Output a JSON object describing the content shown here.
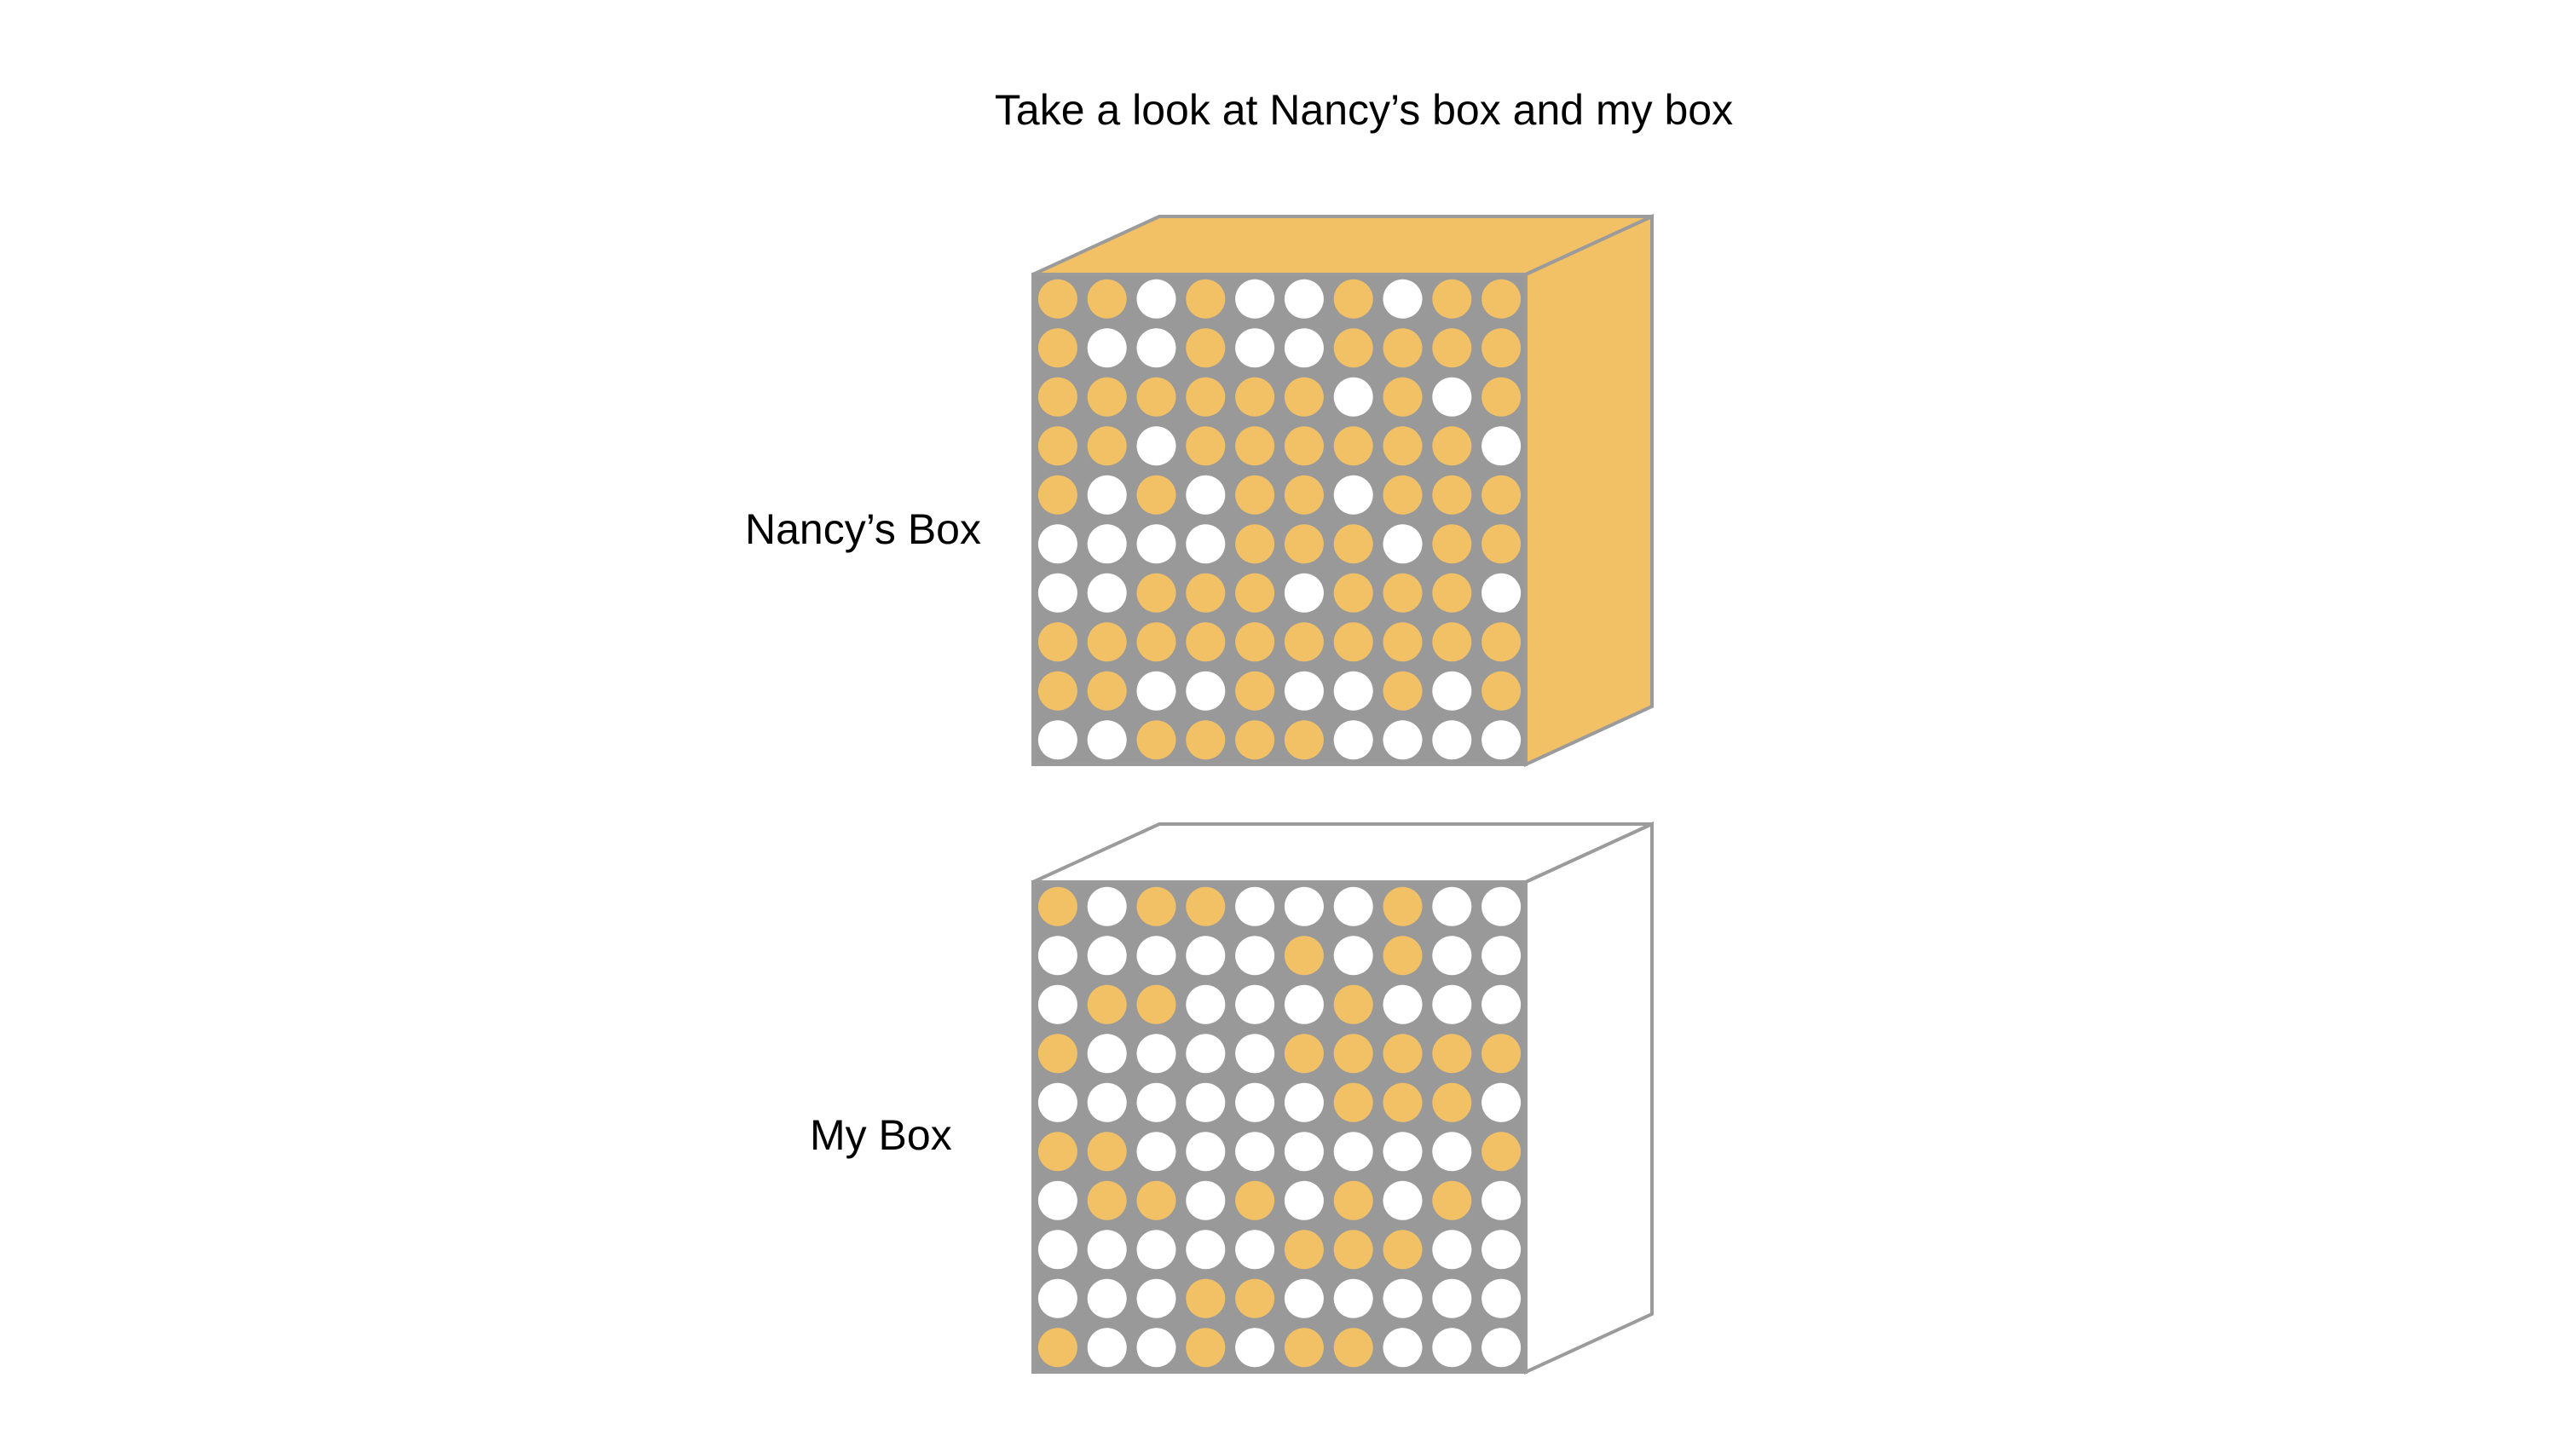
{
  "title": "Take a look at Nancy’s box and my box",
  "colors": {
    "gold": "#F2C166",
    "white": "#FFFFFF",
    "grid": "#999999",
    "edge": "#9B9B9B"
  },
  "boxes": [
    {
      "label": "Nancy’s Box",
      "side_fill": "gold",
      "grid": [
        "GGWGWWGWGG",
        "GWWGWWGGGG",
        "GGGGGGWGWG",
        "GGWGGGGGGW",
        "GWGWGGWGGG",
        "WWWWGGGWGG",
        "WWGGGWGGGW",
        "GGGGGGGGGG",
        "GGWWGWWGWG",
        "WWGGGGWWWW"
      ]
    },
    {
      "label": "My Box",
      "side_fill": "white",
      "grid": [
        "GWGGWWWGWW",
        "WWWWWGWGWW",
        "WGGWWWGWWW",
        "GWWWWGGGGG",
        "WWWWWWGGGW",
        "GGWWWWWWWG",
        "WGGWGWGWGW",
        "WWWWWGGGWW",
        "WWWGGWWWWW",
        "GWWGWGGWWW"
      ]
    }
  ]
}
